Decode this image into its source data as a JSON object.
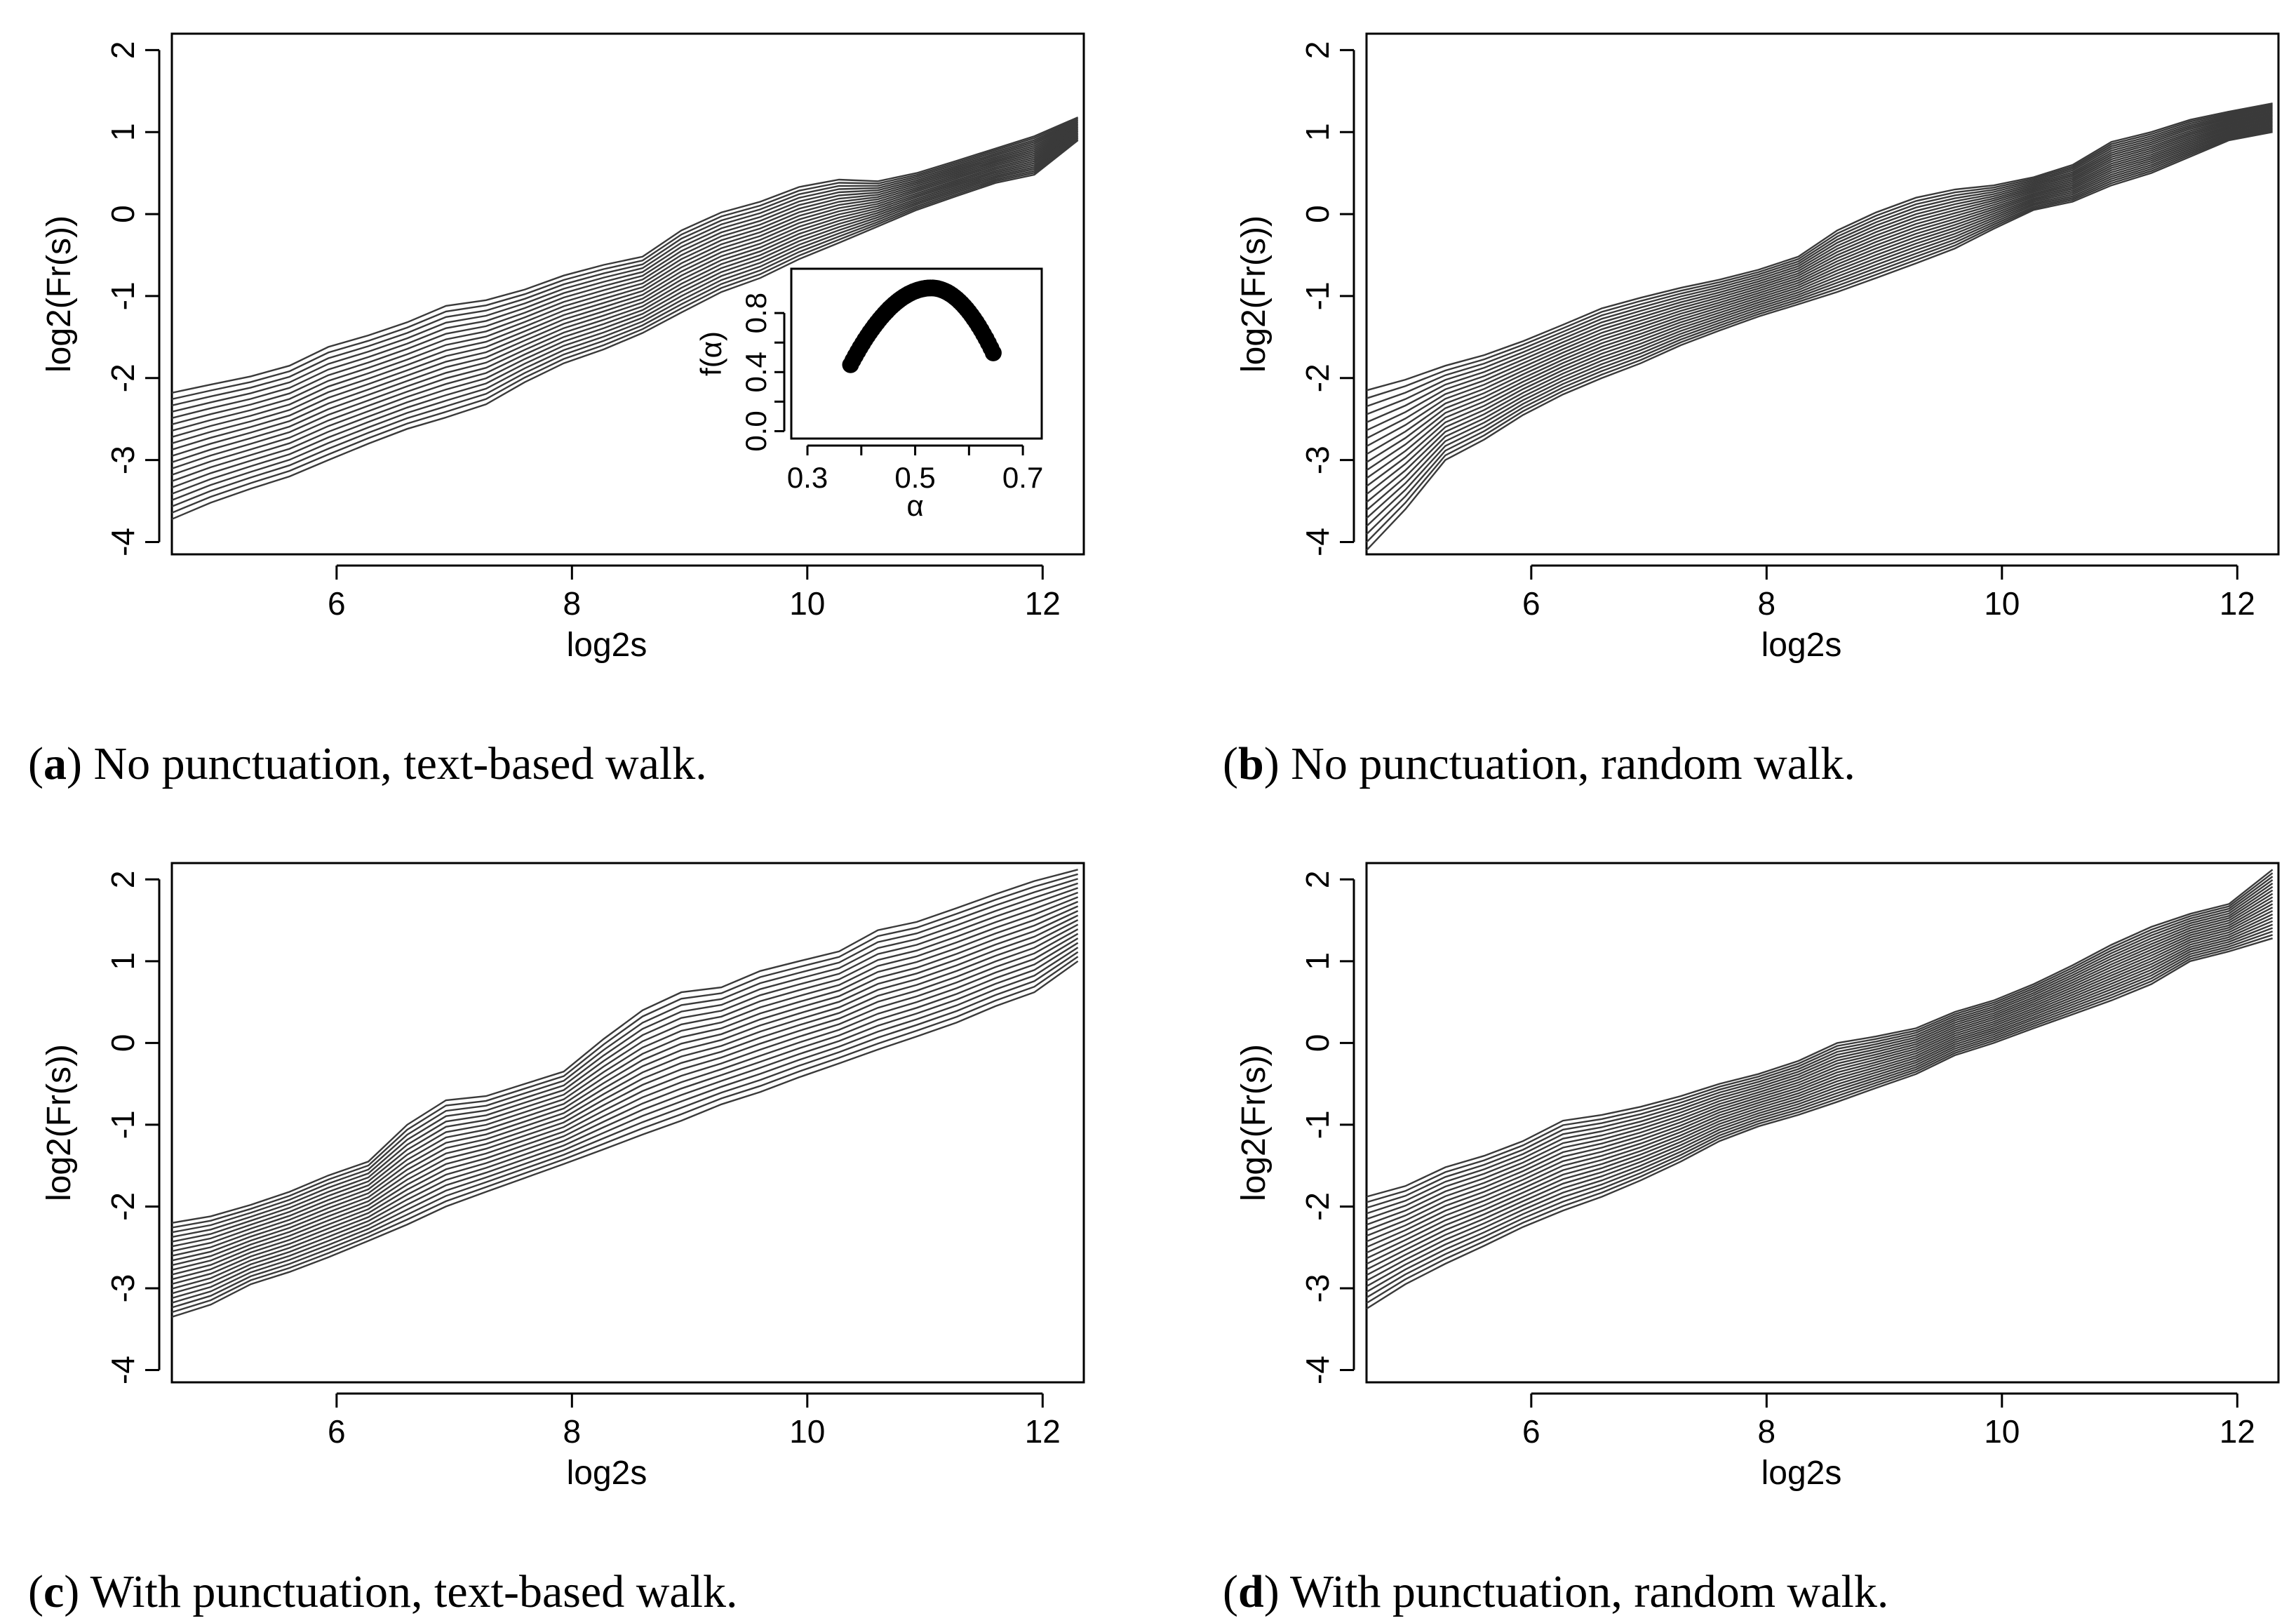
{
  "chart_data": [
    {
      "id": "a",
      "type": "line",
      "ylabel": "log2(Fr(s))",
      "xlabel": "log2s",
      "xlim": [
        4.6,
        12.35
      ],
      "ylim": [
        -4.15,
        2.2
      ],
      "xticks": [
        6,
        8,
        10,
        12
      ],
      "yticks": [
        -4,
        -3,
        -2,
        -1,
        0,
        1,
        2
      ],
      "caption_letter": "a",
      "caption_text": " No punctuation, text-based walk.",
      "x": [
        4.6,
        4.93,
        5.27,
        5.6,
        5.93,
        6.27,
        6.6,
        6.93,
        7.27,
        7.6,
        7.93,
        8.27,
        8.6,
        8.93,
        9.27,
        9.6,
        9.93,
        10.27,
        10.6,
        10.93,
        11.27,
        11.6,
        11.93,
        12.3
      ],
      "top": [
        -2.18,
        -2.08,
        -1.98,
        -1.85,
        -1.62,
        -1.48,
        -1.32,
        -1.12,
        -1.05,
        -0.92,
        -0.75,
        -0.62,
        -0.52,
        -0.2,
        0.02,
        0.15,
        0.33,
        0.42,
        0.4,
        0.5,
        0.65,
        0.8,
        0.95,
        1.18
      ],
      "bottom": [
        -3.72,
        -3.52,
        -3.35,
        -3.2,
        -3.0,
        -2.8,
        -2.62,
        -2.48,
        -2.32,
        -2.05,
        -1.82,
        -1.65,
        -1.45,
        -1.2,
        -0.95,
        -0.78,
        -0.55,
        -0.35,
        -0.15,
        0.05,
        0.22,
        0.38,
        0.48,
        0.9
      ],
      "n_lines": 21,
      "inset": {
        "type": "scatter",
        "xlabel": "α",
        "ylabel": "f(α)",
        "xlim": [
          0.27,
          0.735
        ],
        "ylim": [
          -0.05,
          1.1
        ],
        "xticks": [
          "0.3",
          "0.5",
          "0.7"
        ],
        "yticks": [
          "0.0",
          "0.4",
          "0.8"
        ],
        "alpha_min": 0.38,
        "alpha_max": 0.645,
        "alpha_peak": 0.53,
        "f_min_left": 0.45,
        "f_min_right": 0.53,
        "f_peak": 0.97
      }
    },
    {
      "id": "b",
      "type": "line",
      "ylabel": "log2(Fr(s))",
      "xlabel": "log2s",
      "xlim": [
        4.6,
        12.35
      ],
      "ylim": [
        -4.15,
        2.2
      ],
      "xticks": [
        6,
        8,
        10,
        12
      ],
      "yticks": [
        -4,
        -3,
        -2,
        -1,
        0,
        1,
        2
      ],
      "caption_letter": "b",
      "caption_text": " No punctuation, random walk.",
      "x": [
        4.6,
        4.93,
        5.27,
        5.6,
        5.93,
        6.27,
        6.6,
        6.93,
        7.27,
        7.6,
        7.93,
        8.27,
        8.6,
        8.93,
        9.27,
        9.6,
        9.93,
        10.27,
        10.6,
        10.93,
        11.27,
        11.6,
        11.93,
        12.3
      ],
      "top": [
        -2.15,
        -2.02,
        -1.85,
        -1.72,
        -1.55,
        -1.35,
        -1.15,
        -1.02,
        -0.9,
        -0.8,
        -0.68,
        -0.52,
        -0.2,
        0.02,
        0.2,
        0.3,
        0.35,
        0.45,
        0.6,
        0.88,
        1.0,
        1.15,
        1.25,
        1.35
      ],
      "bottom": [
        -4.1,
        -3.6,
        -3.0,
        -2.75,
        -2.45,
        -2.2,
        -2.0,
        -1.82,
        -1.6,
        -1.42,
        -1.25,
        -1.1,
        -0.95,
        -0.78,
        -0.6,
        -0.42,
        -0.18,
        0.05,
        0.15,
        0.35,
        0.5,
        0.7,
        0.9,
        1.0
      ],
      "n_lines": 21
    },
    {
      "id": "c",
      "type": "line",
      "ylabel": "log2(Fr(s))",
      "xlabel": "log2s",
      "xlim": [
        4.6,
        12.35
      ],
      "ylim": [
        -4.15,
        2.2
      ],
      "xticks": [
        6,
        8,
        10,
        12
      ],
      "yticks": [
        -4,
        -3,
        -2,
        -1,
        0,
        1,
        2
      ],
      "caption_letter": "c",
      "caption_text": " With punctuation, text-based walk.",
      "x": [
        4.6,
        4.93,
        5.27,
        5.6,
        5.93,
        6.27,
        6.6,
        6.93,
        7.27,
        7.6,
        7.93,
        8.27,
        8.6,
        8.93,
        9.27,
        9.6,
        9.93,
        10.27,
        10.6,
        10.93,
        11.27,
        11.6,
        11.93,
        12.3
      ],
      "top": [
        -2.2,
        -2.12,
        -1.98,
        -1.82,
        -1.62,
        -1.45,
        -1.0,
        -0.7,
        -0.65,
        -0.5,
        -0.35,
        0.05,
        0.4,
        0.62,
        0.68,
        0.88,
        1.0,
        1.12,
        1.38,
        1.48,
        1.65,
        1.82,
        1.98,
        2.12
      ],
      "bottom": [
        -3.35,
        -3.2,
        -2.95,
        -2.8,
        -2.62,
        -2.42,
        -2.22,
        -2.0,
        -1.82,
        -1.65,
        -1.48,
        -1.3,
        -1.12,
        -0.95,
        -0.75,
        -0.6,
        -0.42,
        -0.25,
        -0.08,
        0.08,
        0.25,
        0.45,
        0.62,
        1.0
      ],
      "n_lines": 21
    },
    {
      "id": "d",
      "type": "line",
      "ylabel": "log2(Fr(s))",
      "xlabel": "log2s",
      "xlim": [
        4.6,
        12.35
      ],
      "ylim": [
        -4.15,
        2.2
      ],
      "xticks": [
        6,
        8,
        10,
        12
      ],
      "yticks": [
        -4,
        -3,
        -2,
        -1,
        0,
        1,
        2
      ],
      "caption_letter": "d",
      "caption_text": " With punctuation, random walk.",
      "x": [
        4.6,
        4.93,
        5.27,
        5.6,
        5.93,
        6.27,
        6.6,
        6.93,
        7.27,
        7.6,
        7.93,
        8.27,
        8.6,
        8.93,
        9.27,
        9.6,
        9.93,
        10.27,
        10.6,
        10.93,
        11.27,
        11.6,
        11.93,
        12.3
      ],
      "top": [
        -1.88,
        -1.75,
        -1.52,
        -1.38,
        -1.2,
        -0.95,
        -0.88,
        -0.78,
        -0.65,
        -0.5,
        -0.38,
        -0.22,
        0.0,
        0.08,
        0.18,
        0.38,
        0.52,
        0.72,
        0.95,
        1.2,
        1.42,
        1.58,
        1.7,
        2.12
      ],
      "bottom": [
        -3.25,
        -2.95,
        -2.7,
        -2.48,
        -2.25,
        -2.05,
        -1.88,
        -1.68,
        -1.45,
        -1.2,
        -1.02,
        -0.88,
        -0.72,
        -0.55,
        -0.38,
        -0.15,
        0.0,
        0.18,
        0.35,
        0.52,
        0.72,
        1.0,
        1.12,
        1.28
      ],
      "n_lines": 21
    }
  ],
  "colors": {
    "series": "#3a3a3a",
    "axes": "#000000",
    "background": "#ffffff"
  }
}
